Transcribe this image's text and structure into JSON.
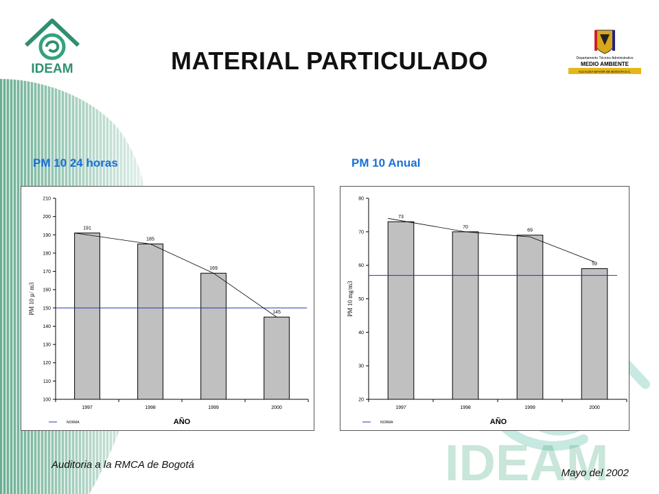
{
  "slide": {
    "title": "MATERIAL PARTICULADO",
    "footer_left": "Auditoria a la RMCA de Bogotá",
    "footer_right": "Mayo del 2002"
  },
  "logos": {
    "ideam_text": "IDEAM",
    "watermark_text": "IDEAM",
    "dama_line1": "Departamento Técnico Administrativo",
    "dama_line2": "MEDIO AMBIENTE",
    "dama_line3": "ALCALDIA MAYOR DE BOGOTA D.C."
  },
  "colors": {
    "accent_blue": "#1a6fd8",
    "bar_fill": "#c0c0c0",
    "norma_line": "#2233bb",
    "ideam_green": "#3ca87a",
    "stripe_green": "#5aa88a"
  },
  "chart_data": [
    {
      "type": "bar",
      "title": "PM 10 24 horas",
      "categories": [
        "1997",
        "1998",
        "1999",
        "2000"
      ],
      "values": [
        191,
        185,
        169,
        145
      ],
      "data_labels": [
        "191",
        "185",
        "169",
        "145"
      ],
      "xlabel": "AÑO",
      "ylabel": "PM 10 µ/ m3",
      "ylim": [
        100,
        210
      ],
      "yticks": [
        100,
        110,
        120,
        130,
        140,
        150,
        160,
        170,
        180,
        190,
        200,
        210
      ],
      "norma": 150,
      "trend": [
        191,
        185,
        169,
        145
      ],
      "legend": [
        "NORMA"
      ],
      "legend_position": "bottom-left",
      "grid": false
    },
    {
      "type": "bar",
      "title": "PM 10 Anual",
      "categories": [
        "1997",
        "1998",
        "1999",
        "2000"
      ],
      "values": [
        73,
        70,
        69,
        59
      ],
      "data_labels": [
        "73",
        "70",
        "69",
        "59"
      ],
      "xlabel": "AÑO",
      "ylabel": "PM 10 mg/m3",
      "ylim": [
        20,
        80
      ],
      "yticks": [
        20,
        30,
        40,
        50,
        60,
        70,
        80
      ],
      "norma": 57,
      "trend": [
        74,
        70,
        68.5,
        61
      ],
      "legend": [
        "NORMA"
      ],
      "legend_position": "bottom-left",
      "grid": false
    }
  ]
}
